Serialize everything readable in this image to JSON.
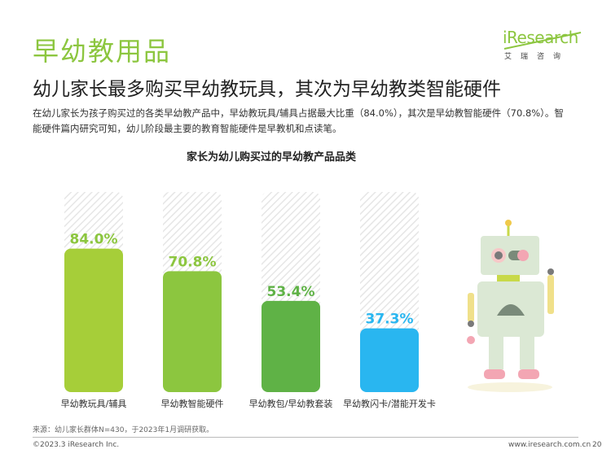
{
  "header": {
    "section_title": "早幼教用品",
    "headline": "幼儿家长最多购买早幼教玩具，其次为早幼教类智能硬件",
    "description": "在幼儿家长为孩子购买过的各类早幼教产品中，早幼教玩具/辅具占据最大比重（84.0%），其次是早幼教智能硬件（70.8%）。智能硬件篇内研究可知，幼儿阶段最主要的教育智能硬件是早教机和点读笔。"
  },
  "logo": {
    "main": "iResearch",
    "sub": "艾瑞咨询",
    "color": "#8cc63f"
  },
  "chart_data": {
    "type": "bar",
    "title": "家长为幼儿购买过的早幼教产品品类",
    "categories": [
      "早幼教玩具/辅具",
      "早幼教智能硬件",
      "早幼教包/早幼教套装",
      "早幼教闪卡/潜能开发卡"
    ],
    "values": [
      84.0,
      70.8,
      53.4,
      37.3
    ],
    "value_labels": [
      "84.0%",
      "70.8%",
      "53.4%",
      "37.3%"
    ],
    "colors": [
      "#a6ce39",
      "#8cc63f",
      "#5fb246",
      "#29b6f0"
    ],
    "label_colors": [
      "#8cc63f",
      "#8cc63f",
      "#5fb246",
      "#29b6f0"
    ],
    "ylim": [
      0,
      100
    ],
    "grid": false,
    "background_bars": true
  },
  "footer": {
    "source": "来源：幼儿家长群体N=430，于2023年1月调研获取。",
    "copyright": "©2023.3 iResearch Inc.",
    "website": "www.iresearch.com.cn",
    "page_number": "20"
  }
}
